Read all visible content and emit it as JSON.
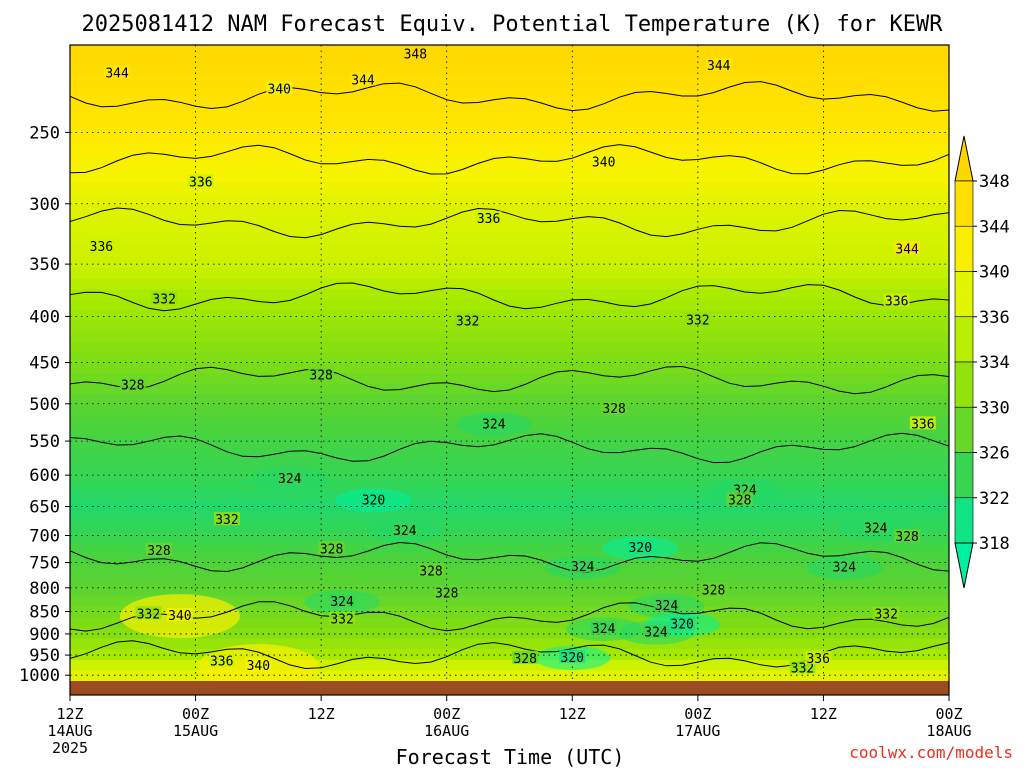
{
  "chart_data": {
    "type": "heatmap",
    "title": "2025081412 NAM Forecast Equiv. Potential Temperature (K) for KEWR",
    "xlabel": "Forecast Time (UTC)",
    "ylabel": "",
    "credit": "coolwx.com/models",
    "x_ticks": [
      {
        "hour": 0,
        "label": "12Z",
        "date": "14AUG",
        "year": "2025"
      },
      {
        "hour": 12,
        "label": "00Z",
        "date": "15AUG",
        "year": ""
      },
      {
        "hour": 24,
        "label": "12Z",
        "date": "",
        "year": ""
      },
      {
        "hour": 36,
        "label": "00Z",
        "date": "16AUG",
        "year": ""
      },
      {
        "hour": 48,
        "label": "12Z",
        "date": "",
        "year": ""
      },
      {
        "hour": 60,
        "label": "00Z",
        "date": "17AUG",
        "year": ""
      },
      {
        "hour": 72,
        "label": "12Z",
        "date": "",
        "year": ""
      },
      {
        "hour": 84,
        "label": "00Z",
        "date": "18AUG",
        "year": ""
      }
    ],
    "xlim": [
      0,
      84
    ],
    "y_axis": {
      "scale": "log",
      "reversed": true,
      "range_hpa": [
        200,
        1015
      ]
    },
    "y_ticks": [
      250,
      300,
      350,
      400,
      450,
      500,
      550,
      600,
      650,
      700,
      750,
      800,
      850,
      900,
      950,
      1000
    ],
    "grid": true,
    "colorbar": {
      "labels": [
        348,
        344,
        340,
        336,
        334,
        330,
        326,
        322,
        318
      ],
      "colors": [
        "#ffd700",
        "#ffe800",
        "#f5f500",
        "#ccf200",
        "#a6ea00",
        "#7edc16",
        "#4fd23a",
        "#21d86a",
        "#00f0a0"
      ],
      "extend": "both"
    },
    "profile": {
      "pressure": [
        200,
        250,
        300,
        350,
        400,
        450,
        500,
        550,
        600,
        650,
        700,
        750,
        800,
        850,
        900,
        950,
        1000
      ],
      "theta_e": [
        348,
        344,
        338,
        336,
        333,
        330,
        327,
        325,
        324,
        322,
        324,
        326,
        327,
        329,
        331,
        334,
        338
      ]
    },
    "contour_labels": [
      {
        "value": 348,
        "hour": 33,
        "p": 205
      },
      {
        "value": 344,
        "hour": 4.5,
        "p": 215
      },
      {
        "value": 344,
        "hour": 28,
        "p": 219
      },
      {
        "value": 344,
        "hour": 62,
        "p": 211
      },
      {
        "value": 340,
        "hour": 20,
        "p": 224
      },
      {
        "value": 340,
        "hour": 51,
        "p": 270
      },
      {
        "value": 336,
        "hour": 12.5,
        "p": 284
      },
      {
        "value": 336,
        "hour": 3,
        "p": 335
      },
      {
        "value": 336,
        "hour": 40,
        "p": 312
      },
      {
        "value": 336,
        "hour": 79,
        "p": 385
      },
      {
        "value": 344,
        "hour": 80,
        "p": 337
      },
      {
        "value": 336,
        "hour": 81.5,
        "p": 527
      },
      {
        "value": 332,
        "hour": 9,
        "p": 383
      },
      {
        "value": 332,
        "hour": 38,
        "p": 405
      },
      {
        "value": 332,
        "hour": 60,
        "p": 404
      },
      {
        "value": 328,
        "hour": 6,
        "p": 477
      },
      {
        "value": 328,
        "hour": 24,
        "p": 465
      },
      {
        "value": 328,
        "hour": 52,
        "p": 507
      },
      {
        "value": 324,
        "hour": 40.5,
        "p": 527
      },
      {
        "value": 324,
        "hour": 21,
        "p": 606
      },
      {
        "value": 324,
        "hour": 64.5,
        "p": 624
      },
      {
        "value": 324,
        "hour": 77,
        "p": 688
      },
      {
        "value": 324,
        "hour": 32,
        "p": 692
      },
      {
        "value": 324,
        "hour": 49,
        "p": 759
      },
      {
        "value": 324,
        "hour": 74,
        "p": 760
      },
      {
        "value": 324,
        "hour": 26,
        "p": 830
      },
      {
        "value": 324,
        "hour": 57,
        "p": 838
      },
      {
        "value": 324,
        "hour": 51,
        "p": 889
      },
      {
        "value": 324,
        "hour": 56,
        "p": 897
      },
      {
        "value": 320,
        "hour": 29,
        "p": 640
      },
      {
        "value": 320,
        "hour": 54.5,
        "p": 723
      },
      {
        "value": 320,
        "hour": 58.5,
        "p": 879
      },
      {
        "value": 320,
        "hour": 48,
        "p": 957
      },
      {
        "value": 328,
        "hour": 64,
        "p": 640
      },
      {
        "value": 328,
        "hour": 8.5,
        "p": 728
      },
      {
        "value": 328,
        "hour": 25,
        "p": 725
      },
      {
        "value": 328,
        "hour": 34.5,
        "p": 767
      },
      {
        "value": 328,
        "hour": 36,
        "p": 812
      },
      {
        "value": 328,
        "hour": 61.5,
        "p": 806
      },
      {
        "value": 328,
        "hour": 43.5,
        "p": 959
      },
      {
        "value": 328,
        "hour": 80,
        "p": 703
      },
      {
        "value": 332,
        "hour": 15,
        "p": 673
      },
      {
        "value": 332,
        "hour": 7.5,
        "p": 856
      },
      {
        "value": 332,
        "hour": 26,
        "p": 868
      },
      {
        "value": 332,
        "hour": 78,
        "p": 857
      },
      {
        "value": 332,
        "hour": 70,
        "p": 983
      },
      {
        "value": 336,
        "hour": 14.5,
        "p": 966
      },
      {
        "value": 336,
        "hour": 71.5,
        "p": 960
      },
      {
        "value": 340,
        "hour": 10.5,
        "p": 860
      },
      {
        "value": 340,
        "hour": 18,
        "p": 977
      }
    ]
  }
}
